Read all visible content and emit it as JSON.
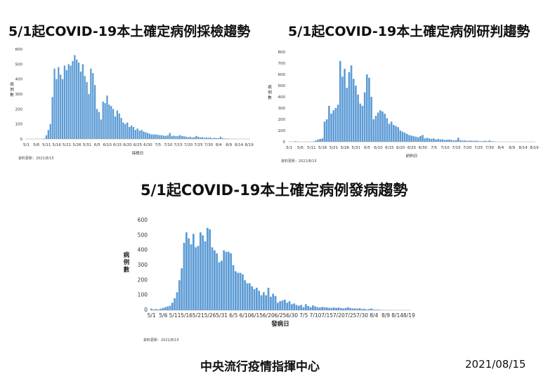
{
  "footer": {
    "org": "中央流行疫情指揮中心",
    "date": "2021/08/15"
  },
  "chart_data": [
    {
      "type": "bar",
      "title": "5/1起COVID-19本土確定病例採檢趨勢",
      "xlabel": "採檢日",
      "ylabel": "病例數",
      "source": "資料更新：2021/8/15",
      "ylim": [
        0,
        600
      ],
      "yticks": [
        0,
        100,
        200,
        300,
        400,
        500,
        600
      ],
      "xticks": [
        "5/1",
        "5/6",
        "5/11",
        "5/16",
        "5/21",
        "5/26",
        "5/31",
        "6/5",
        "6/10",
        "6/15",
        "6/20",
        "6/25",
        "6/30",
        "7/5",
        "7/10",
        "7/15",
        "7/20",
        "7/25",
        "7/30",
        "8/4",
        "8/9",
        "8/14",
        "8/19"
      ],
      "color": "#5b9bd5",
      "series": [
        {
          "values": [
            0,
            0,
            0,
            0,
            0,
            0,
            0,
            0,
            0,
            3,
            25,
            60,
            100,
            280,
            470,
            400,
            480,
            430,
            400,
            490,
            460,
            500,
            490,
            520,
            560,
            530,
            510,
            450,
            500,
            420,
            380,
            300,
            470,
            440,
            360,
            200,
            180,
            130,
            250,
            240,
            290,
            230,
            220,
            200,
            150,
            190,
            170,
            140,
            110,
            100,
            110,
            80,
            90,
            80,
            60,
            70,
            55,
            60,
            50,
            45,
            40,
            35,
            30,
            30,
            30,
            28,
            25,
            25,
            22,
            20,
            25,
            40,
            20,
            22,
            18,
            20,
            25,
            20,
            18,
            15,
            12,
            15,
            10,
            12,
            20,
            15,
            10,
            12,
            8,
            10,
            8,
            10,
            5,
            8,
            5,
            5,
            15,
            5,
            3,
            2,
            2,
            0,
            0,
            0,
            0,
            0,
            0,
            0,
            0,
            0,
            0
          ]
        }
      ]
    },
    {
      "type": "bar",
      "title": "5/1起COVID-19本土確定病例研判趨勢",
      "xlabel": "研判日",
      "ylabel": "病例數",
      "source": "資料更新：2021/8/15",
      "ylim": [
        0,
        800
      ],
      "yticks": [
        0,
        100,
        200,
        300,
        400,
        500,
        600,
        700,
        800
      ],
      "xticks": [
        "5/1",
        "5/6",
        "5/11",
        "5/16",
        "5/21",
        "5/26",
        "5/31",
        "6/5",
        "6/10",
        "6/15",
        "6/20",
        "6/25",
        "6/30",
        "7/5",
        "7/10",
        "7/15",
        "7/20",
        "7/25",
        "7/30",
        "8/4",
        "8/9",
        "8/14",
        "8/19"
      ],
      "color": "#5b9bd5",
      "series": [
        {
          "values": [
            0,
            0,
            0,
            5,
            0,
            0,
            0,
            0,
            0,
            2,
            0,
            3,
            10,
            20,
            25,
            30,
            180,
            200,
            320,
            250,
            280,
            300,
            330,
            720,
            580,
            650,
            480,
            620,
            680,
            560,
            500,
            420,
            340,
            320,
            440,
            600,
            570,
            400,
            200,
            230,
            260,
            280,
            270,
            250,
            210,
            160,
            180,
            150,
            140,
            130,
            100,
            90,
            80,
            70,
            60,
            55,
            50,
            45,
            40,
            50,
            60,
            30,
            35,
            30,
            25,
            30,
            20,
            25,
            20,
            22,
            15,
            18,
            20,
            15,
            12,
            14,
            35,
            12,
            10,
            12,
            8,
            10,
            10,
            8,
            10,
            8,
            5,
            6,
            10,
            5,
            12,
            5,
            3,
            2,
            0,
            0,
            0,
            0,
            0,
            0,
            0,
            0,
            0,
            0,
            0,
            0,
            0,
            0,
            0,
            0,
            0
          ]
        }
      ]
    },
    {
      "type": "bar",
      "title": "5/1起COVID-19本土確定病例發病趨勢",
      "xlabel": "發病日",
      "ylabel": "病例數",
      "source": "資料更新：2021/8/15",
      "ylim": [
        0,
        600
      ],
      "yticks": [
        0,
        100,
        200,
        300,
        400,
        500,
        600
      ],
      "xticks": [
        "5/1",
        "5/6",
        "5/11",
        "5/16",
        "5/21",
        "5/26",
        "5/31",
        "6/5",
        "6/10",
        "6/15",
        "6/20",
        "6/25",
        "6/30",
        "7/5",
        "7/10",
        "7/15",
        "7/20",
        "7/25",
        "7/30",
        "8/4",
        "8/9",
        "8/14",
        "8/19"
      ],
      "color": "#5b9bd5",
      "series": [
        {
          "values": [
            10,
            5,
            8,
            5,
            10,
            15,
            20,
            25,
            30,
            50,
            80,
            120,
            200,
            280,
            450,
            520,
            480,
            440,
            510,
            420,
            430,
            520,
            500,
            460,
            550,
            540,
            420,
            400,
            380,
            320,
            330,
            400,
            390,
            390,
            380,
            300,
            260,
            250,
            250,
            240,
            200,
            180,
            180,
            160,
            140,
            150,
            130,
            100,
            120,
            100,
            150,
            90,
            110,
            95,
            50,
            60,
            65,
            70,
            50,
            60,
            40,
            45,
            35,
            30,
            35,
            20,
            40,
            28,
            20,
            32,
            25,
            20,
            18,
            22,
            20,
            18,
            16,
            15,
            18,
            15,
            18,
            14,
            12,
            15,
            20,
            15,
            12,
            12,
            10,
            14,
            8,
            10,
            5,
            8,
            12,
            5,
            3,
            4,
            2,
            1,
            1,
            0,
            0,
            0,
            0,
            0,
            0,
            0,
            0,
            0,
            0
          ]
        }
      ]
    }
  ]
}
